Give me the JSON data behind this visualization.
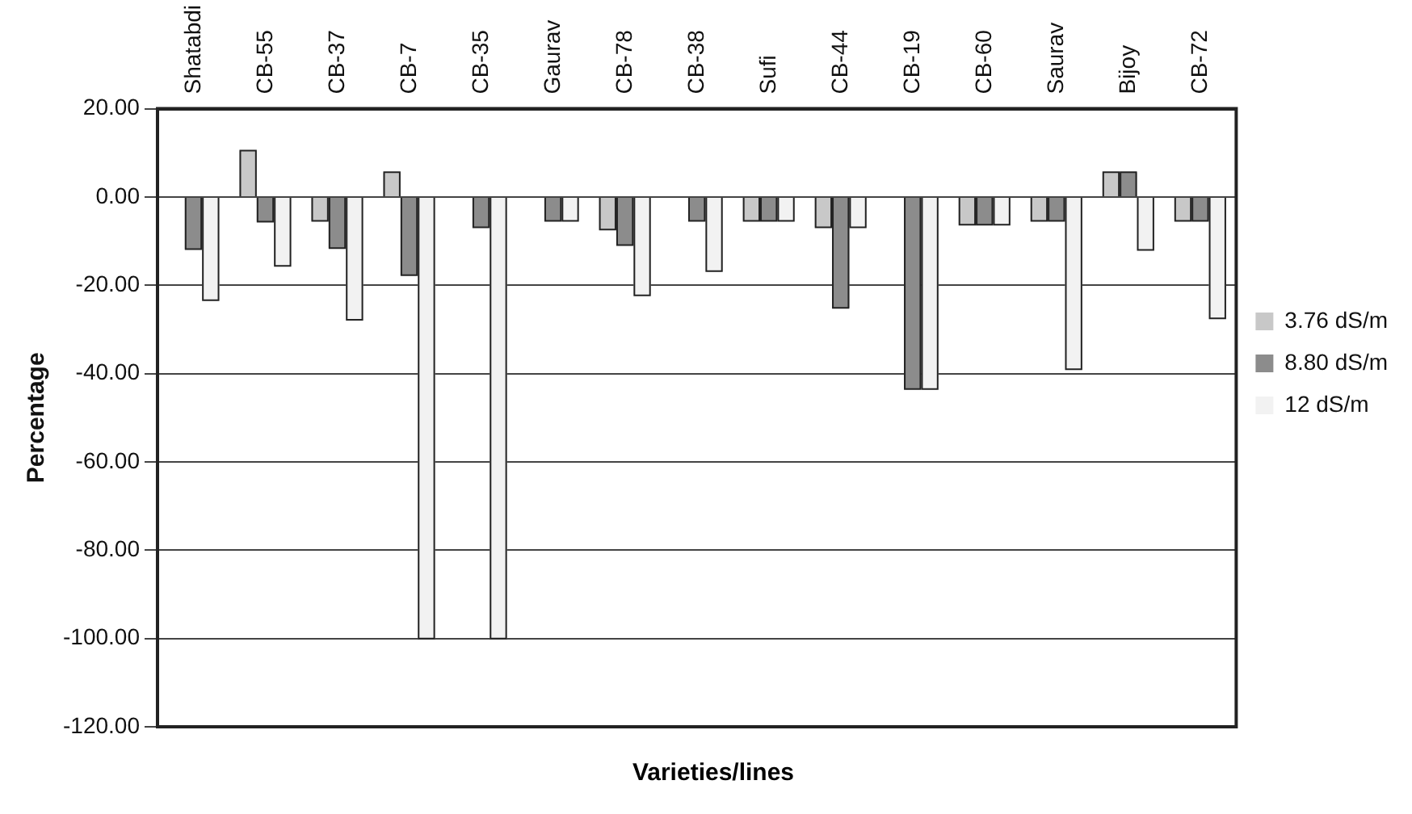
{
  "chart_data": {
    "type": "bar",
    "xlabel": "Varieties/lines",
    "ylabel": "Percentage",
    "categories": [
      "Shatabdi",
      "CB-55",
      "CB-37",
      "CB-7",
      "CB-35",
      "Gaurav",
      "CB-78",
      "CB-38",
      "Sufi",
      "CB-44",
      "CB-19",
      "CB-60",
      "Saurav",
      "Bijoy",
      "CB-72"
    ],
    "series": [
      {
        "name": "3.76 dS/m",
        "color": "#c8c8c8",
        "values": [
          null,
          10.5,
          -5.4,
          5.6,
          null,
          null,
          -7.4,
          null,
          -5.4,
          -6.9,
          null,
          -6.3,
          -5.4,
          5.6,
          -5.4
        ]
      },
      {
        "name": "8.80 dS/m",
        "color": "#8c8c8c",
        "values": [
          -11.8,
          -5.6,
          -11.6,
          -17.7,
          -6.9,
          -5.4,
          -10.9,
          -5.4,
          -5.4,
          -25.1,
          -43.5,
          -6.3,
          -5.4,
          5.6,
          -5.4
        ]
      },
      {
        "name": "12 dS/m",
        "color": "#f2f2f2",
        "values": [
          -23.4,
          -15.6,
          -27.8,
          -100,
          -100,
          -5.4,
          -22.3,
          -16.8,
          -5.4,
          -6.9,
          -43.5,
          -6.3,
          -39,
          -12,
          -27.5
        ]
      }
    ],
    "ylim": [
      -120,
      20
    ],
    "yticks": [
      {
        "value": 20,
        "label": "20.00"
      },
      {
        "value": 0,
        "label": "0.00"
      },
      {
        "value": -20,
        "label": "-20.00"
      },
      {
        "value": -40,
        "label": "-40.00"
      },
      {
        "value": -60,
        "label": "-60.00"
      },
      {
        "value": -80,
        "label": "-80.00"
      },
      {
        "value": -100,
        "label": "-100.00"
      },
      {
        "value": -120,
        "label": "-120.00"
      }
    ],
    "grid": "y",
    "legend": "right"
  }
}
